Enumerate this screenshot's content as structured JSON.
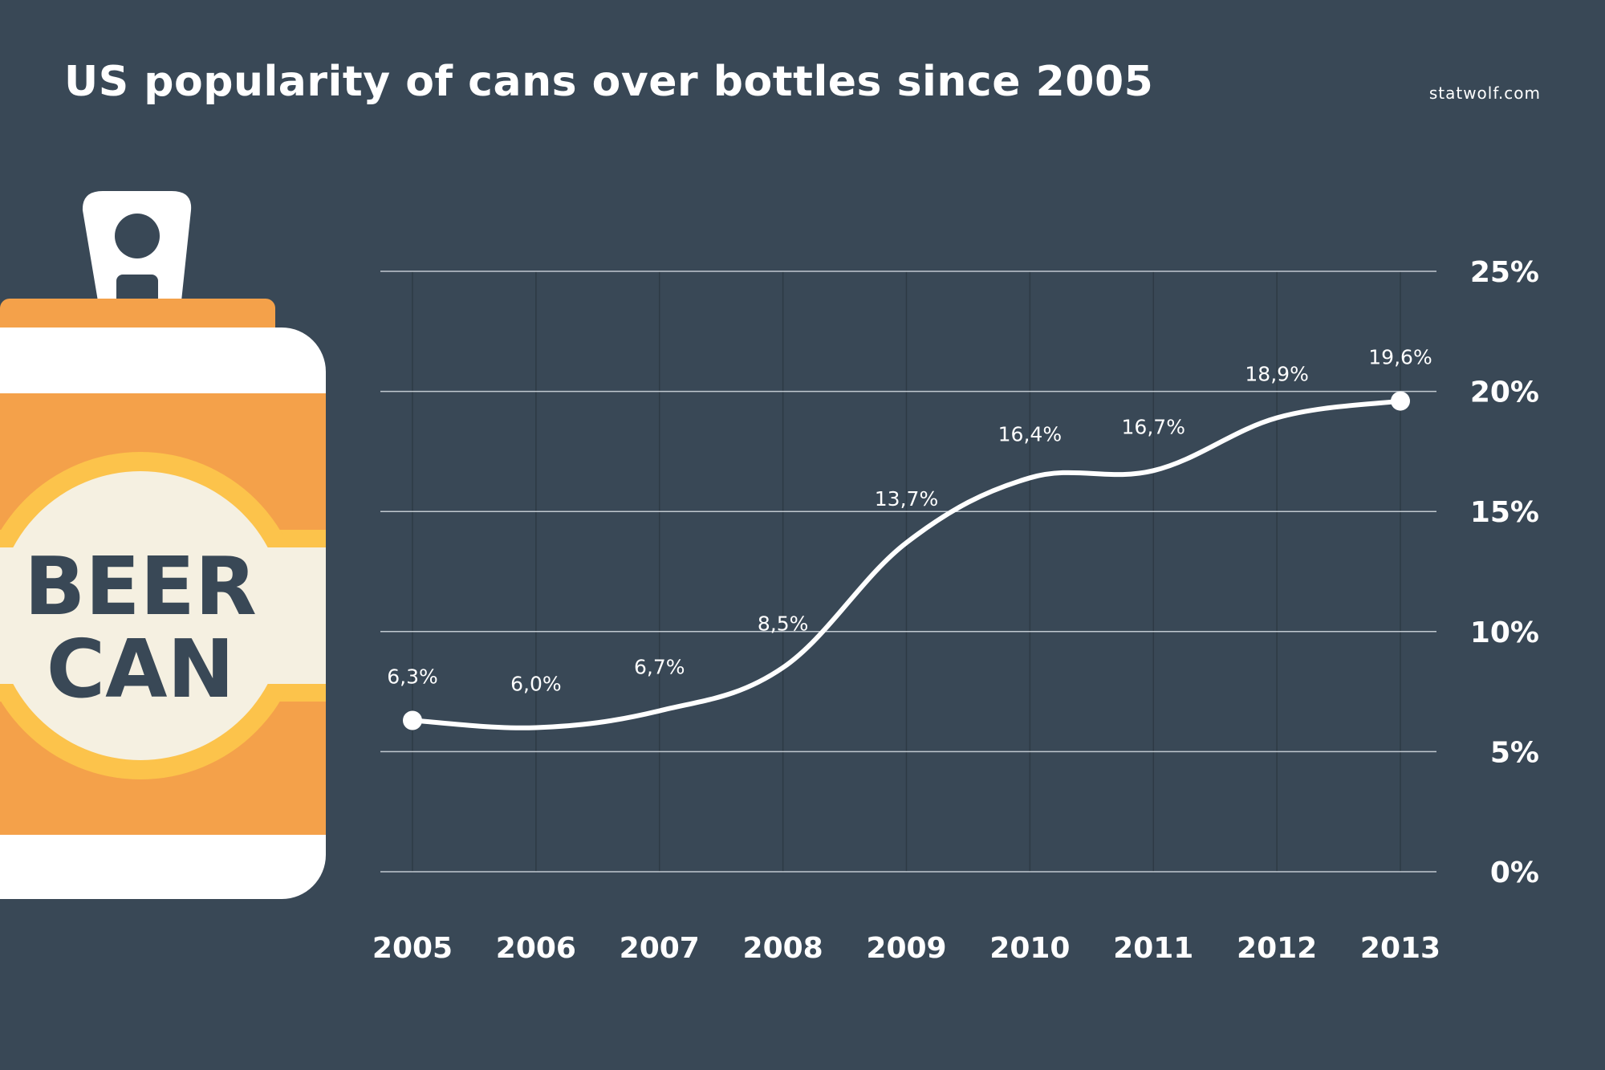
{
  "title": "US popularity of cans over bottles since 2005",
  "source": "statwolf.com",
  "illustration": {
    "label_line1": "BEER",
    "label_line2": "CAN",
    "colors": {
      "orange": "#F4A14A",
      "yellow": "#FCC34B",
      "cream": "#F5F0E1",
      "white": "#FFFFFF",
      "text": "#394856"
    }
  },
  "colors": {
    "background": "#394856",
    "line": "#FFFFFF",
    "grid": "#D9E0E6",
    "vgrid": "#2E3A45"
  },
  "chart_data": {
    "type": "line",
    "title": "US popularity of cans over bottles since 2005",
    "x": [
      "2005",
      "2006",
      "2007",
      "2008",
      "2009",
      "2010",
      "2011",
      "2012",
      "2013"
    ],
    "series": [
      {
        "values": [
          6.3,
          6.0,
          6.7,
          8.5,
          13.7,
          16.4,
          16.7,
          18.9,
          19.6
        ]
      }
    ],
    "data_labels": [
      "6,3%",
      "6,0%",
      "6,7%",
      "8,5%",
      "13,7%",
      "16,4%",
      "16,7%",
      "18,9%",
      "19,6%"
    ],
    "y_ticks": [
      0,
      5,
      10,
      15,
      20,
      25
    ],
    "y_tick_labels": [
      "0%",
      "5%",
      "10%",
      "15%",
      "20%",
      "25%"
    ],
    "ylim": [
      0,
      25
    ],
    "xlabel": "",
    "ylabel": "",
    "grid": true,
    "y_axis_position": "right",
    "legend": "none"
  }
}
